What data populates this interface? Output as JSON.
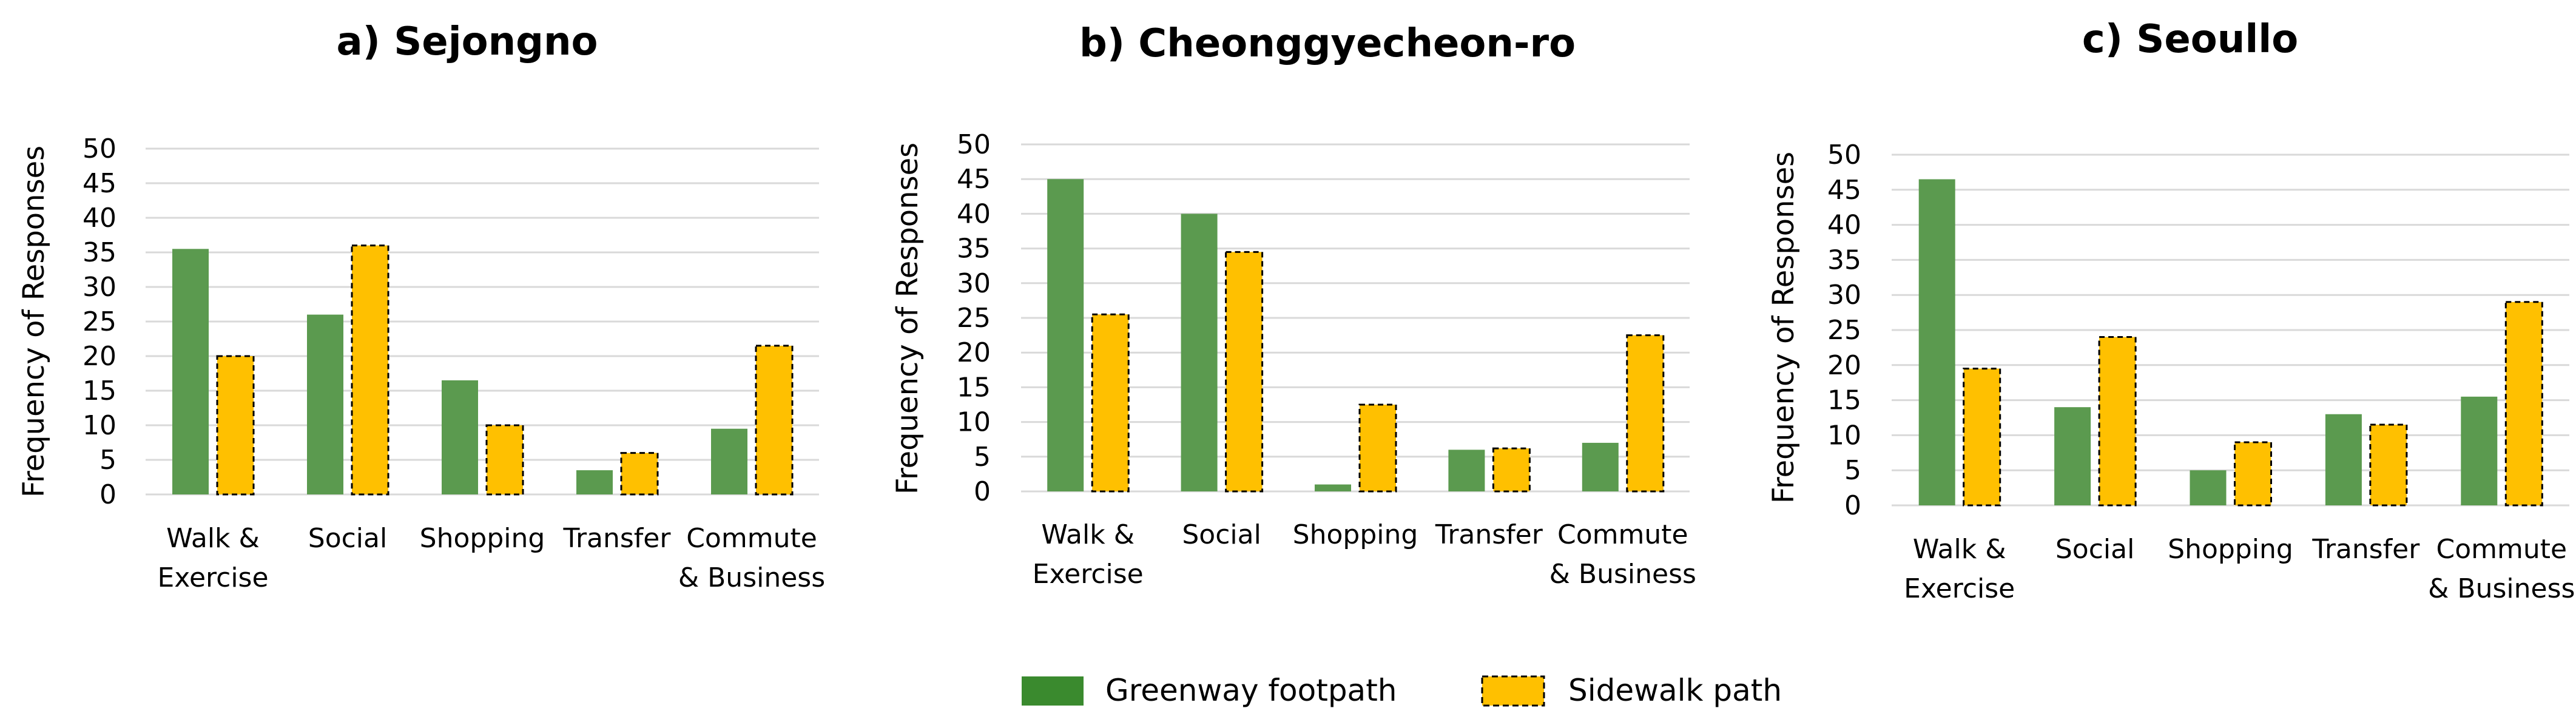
{
  "chart_data": [
    {
      "type": "bar",
      "title": "a) Sejongno",
      "ylabel": "Frequency of Responses",
      "xlabel": "",
      "ylim": [
        0,
        50
      ],
      "yticks": [
        "0",
        "5",
        "10",
        "15",
        "20",
        "25",
        "30",
        "35",
        "40",
        "45",
        "50"
      ],
      "categories": [
        [
          "Walk &",
          "Exercise"
        ],
        [
          "Social"
        ],
        [
          "Shopping"
        ],
        [
          "Transfer"
        ],
        [
          "Commute",
          "& Business"
        ]
      ],
      "series": [
        {
          "name": "Greenway footpath",
          "values": [
            35.5,
            26,
            16.5,
            3.5,
            9.5
          ]
        },
        {
          "name": "Sidewalk path",
          "values": [
            20,
            36,
            10,
            6,
            21.5
          ]
        }
      ]
    },
    {
      "type": "bar",
      "title": "b) Cheonggyecheon-ro",
      "ylabel": "Frequency of Responses",
      "xlabel": "",
      "ylim": [
        0,
        50
      ],
      "yticks": [
        "0",
        "5",
        "10",
        "15",
        "20",
        "25",
        "30",
        "35",
        "40",
        "45",
        "50"
      ],
      "categories": [
        [
          "Walk &",
          "Exercise"
        ],
        [
          "Social"
        ],
        [
          "Shopping"
        ],
        [
          "Transfer"
        ],
        [
          "Commute",
          "& Business"
        ]
      ],
      "series": [
        {
          "name": "Greenway footpath",
          "values": [
            45,
            40,
            1,
            6,
            7
          ]
        },
        {
          "name": "Sidewalk path",
          "values": [
            25.5,
            34.5,
            12.5,
            6.2,
            22.5
          ]
        }
      ]
    },
    {
      "type": "bar",
      "title": "c) Seoullo",
      "ylabel": "Frequency of Responses",
      "xlabel": "",
      "ylim": [
        0,
        50
      ],
      "yticks": [
        "0",
        "5",
        "10",
        "15",
        "20",
        "25",
        "30",
        "35",
        "40",
        "45",
        "50"
      ],
      "categories": [
        [
          "Walk &",
          "Exercise"
        ],
        [
          "Social"
        ],
        [
          "Shopping"
        ],
        [
          "Transfer"
        ],
        [
          "Commute",
          "& Business"
        ]
      ],
      "series": [
        {
          "name": "Greenway footpath",
          "values": [
            46.5,
            14,
            5,
            13,
            15.5
          ]
        },
        {
          "name": "Sidewalk path",
          "values": [
            19.5,
            24,
            9,
            11.5,
            29
          ]
        }
      ]
    }
  ],
  "legend": {
    "items": [
      {
        "label": "Greenway footpath"
      },
      {
        "label": "Sidewalk path"
      }
    ]
  },
  "colors": {
    "greenway": "#5b9a4f",
    "greenway_legend": "#3a8a2e",
    "sidewalk": "#ffc000",
    "grid": "#d9d9d9",
    "text": "#000000"
  }
}
